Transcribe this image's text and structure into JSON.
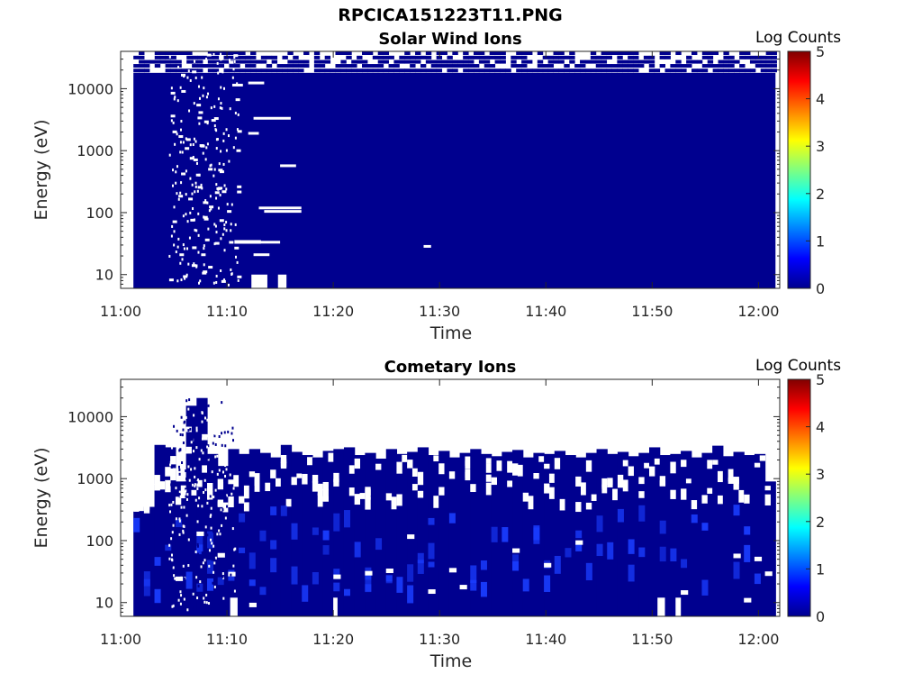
{
  "figure_title": "RPCICA151223T11.PNG",
  "chart_data": [
    {
      "type": "heatmap",
      "title": "Solar Wind Ions",
      "xlabel": "Time",
      "ylabel": "Energy (eV)",
      "y_scale": "log",
      "ylim": [
        6,
        40000
      ],
      "y_ticks": [
        10,
        100,
        1000,
        10000
      ],
      "y_tick_labels": [
        "10",
        "100",
        "1000",
        "10000"
      ],
      "x_ticks": [
        "11:00",
        "11:10",
        "11:20",
        "11:30",
        "11:40",
        "11:50",
        "12:00"
      ],
      "x_range_minutes": [
        0,
        62
      ],
      "data_start_minute": 1.2,
      "data_end_minute": 61.6,
      "colorbar": {
        "label": "Log Counts",
        "min": 0,
        "max": 5,
        "ticks": [
          "0",
          "1",
          "2",
          "3",
          "4",
          "5"
        ]
      },
      "fill_color": "#00008f",
      "dominant_value": 0,
      "description_of_levels": "nearly uniform log counts ~0 across all energies below ~20000 eV"
    },
    {
      "type": "heatmap",
      "title": "Cometary Ions",
      "xlabel": "Time",
      "ylabel": "Energy (eV)",
      "y_scale": "log",
      "ylim": [
        6,
        40000
      ],
      "y_ticks": [
        10,
        100,
        1000,
        10000
      ],
      "y_tick_labels": [
        "10",
        "100",
        "1000",
        "10000"
      ],
      "x_ticks": [
        "11:00",
        "11:10",
        "11:20",
        "11:30",
        "11:40",
        "11:50",
        "12:00"
      ],
      "x_range_minutes": [
        0,
        62
      ],
      "data_start_minute": 1.2,
      "data_end_minute": 61.6,
      "colorbar": {
        "label": "Log Counts",
        "min": 0,
        "max": 5,
        "ticks": [
          "0",
          "1",
          "2",
          "3",
          "4",
          "5"
        ]
      },
      "fill_color": "#00008f",
      "highlight_color": "#1a3dff",
      "upper_envelope_eV": [
        300,
        350,
        3500,
        3200,
        900,
        15000,
        20000,
        2500,
        1600,
        3000,
        2500,
        3000,
        2600,
        2200,
        3500,
        2700,
        2400,
        2200,
        2800,
        3000,
        3200,
        2400,
        2600,
        2100,
        3000,
        2500,
        2700,
        3200,
        2400,
        2800,
        2200,
        2600,
        3000,
        2500,
        2300,
        2700,
        2900,
        2200,
        2600,
        2500,
        2800,
        2400,
        2200,
        2600,
        3000,
        2500,
        2700,
        2300,
        2600,
        3200,
        2400,
        2500,
        2800,
        2200,
        2600,
        3400,
        2300,
        2700,
        2400,
        2500,
        900
      ]
    }
  ]
}
